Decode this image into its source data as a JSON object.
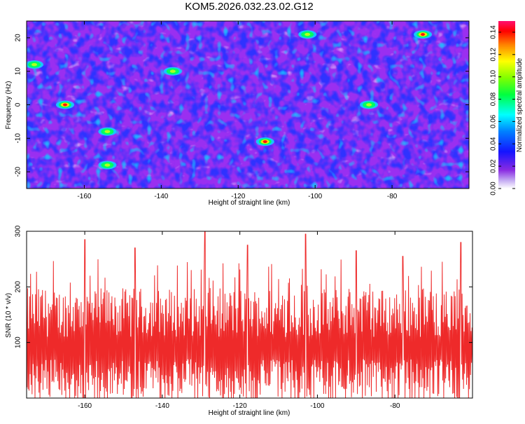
{
  "title": "KOM5.2026.032.23.02.G12",
  "chart_data": [
    {
      "type": "heatmap",
      "xlabel": "Height of straight line (km)",
      "ylabel": "Frequency (Hz)",
      "xlim": [
        -175,
        -60
      ],
      "ylim": [
        -25,
        25
      ],
      "xticks": [
        -160,
        -140,
        -120,
        -100,
        -80
      ],
      "yticks": [
        -20,
        -10,
        0,
        10,
        20
      ],
      "colorbar": {
        "label": "Normalized spectral amplitude",
        "range": [
          0,
          0.15
        ],
        "ticks": [
          "0.00",
          "0.02",
          "0.04",
          "0.06",
          "0.08",
          "0.10",
          "0.12",
          "0.14"
        ]
      },
      "peaks": [
        {
          "x": -165,
          "y": 0,
          "value": 0.13
        },
        {
          "x": -113,
          "y": -11,
          "value": 0.12
        },
        {
          "x": -72,
          "y": 21,
          "value": 0.135
        },
        {
          "x": -154,
          "y": -8,
          "value": 0.09
        },
        {
          "x": -102,
          "y": 21,
          "value": 0.08
        },
        {
          "x": -86,
          "y": 0,
          "value": 0.08
        },
        {
          "x": -137,
          "y": 10,
          "value": 0.07
        },
        {
          "x": -173,
          "y": 12,
          "value": 0.07
        },
        {
          "x": -154,
          "y": -18,
          "value": 0.075
        }
      ]
    },
    {
      "type": "line",
      "xlabel": "Height of straight line (km)",
      "ylabel": "SNR (10 * v/v)",
      "xlim": [
        -175,
        -60
      ],
      "ylim": [
        0,
        300
      ],
      "xticks": [
        -160,
        -140,
        -120,
        -100,
        -80
      ],
      "yticks": [
        100,
        200,
        300
      ],
      "series": [
        {
          "name": "SNR",
          "color": "#ee2a2a",
          "x_range": [
            -175,
            -60
          ],
          "points": 900,
          "baseline": 90,
          "max": 300,
          "peaks": [
            {
              "x": -160,
              "y": 285
            },
            {
              "x": -129,
              "y": 300
            },
            {
              "x": -103,
              "y": 295
            },
            {
              "x": -63,
              "y": 280
            },
            {
              "x": -147,
              "y": 270
            },
            {
              "x": -118,
              "y": 275
            },
            {
              "x": -90,
              "y": 265
            },
            {
              "x": -78,
              "y": 255
            }
          ]
        }
      ]
    }
  ]
}
